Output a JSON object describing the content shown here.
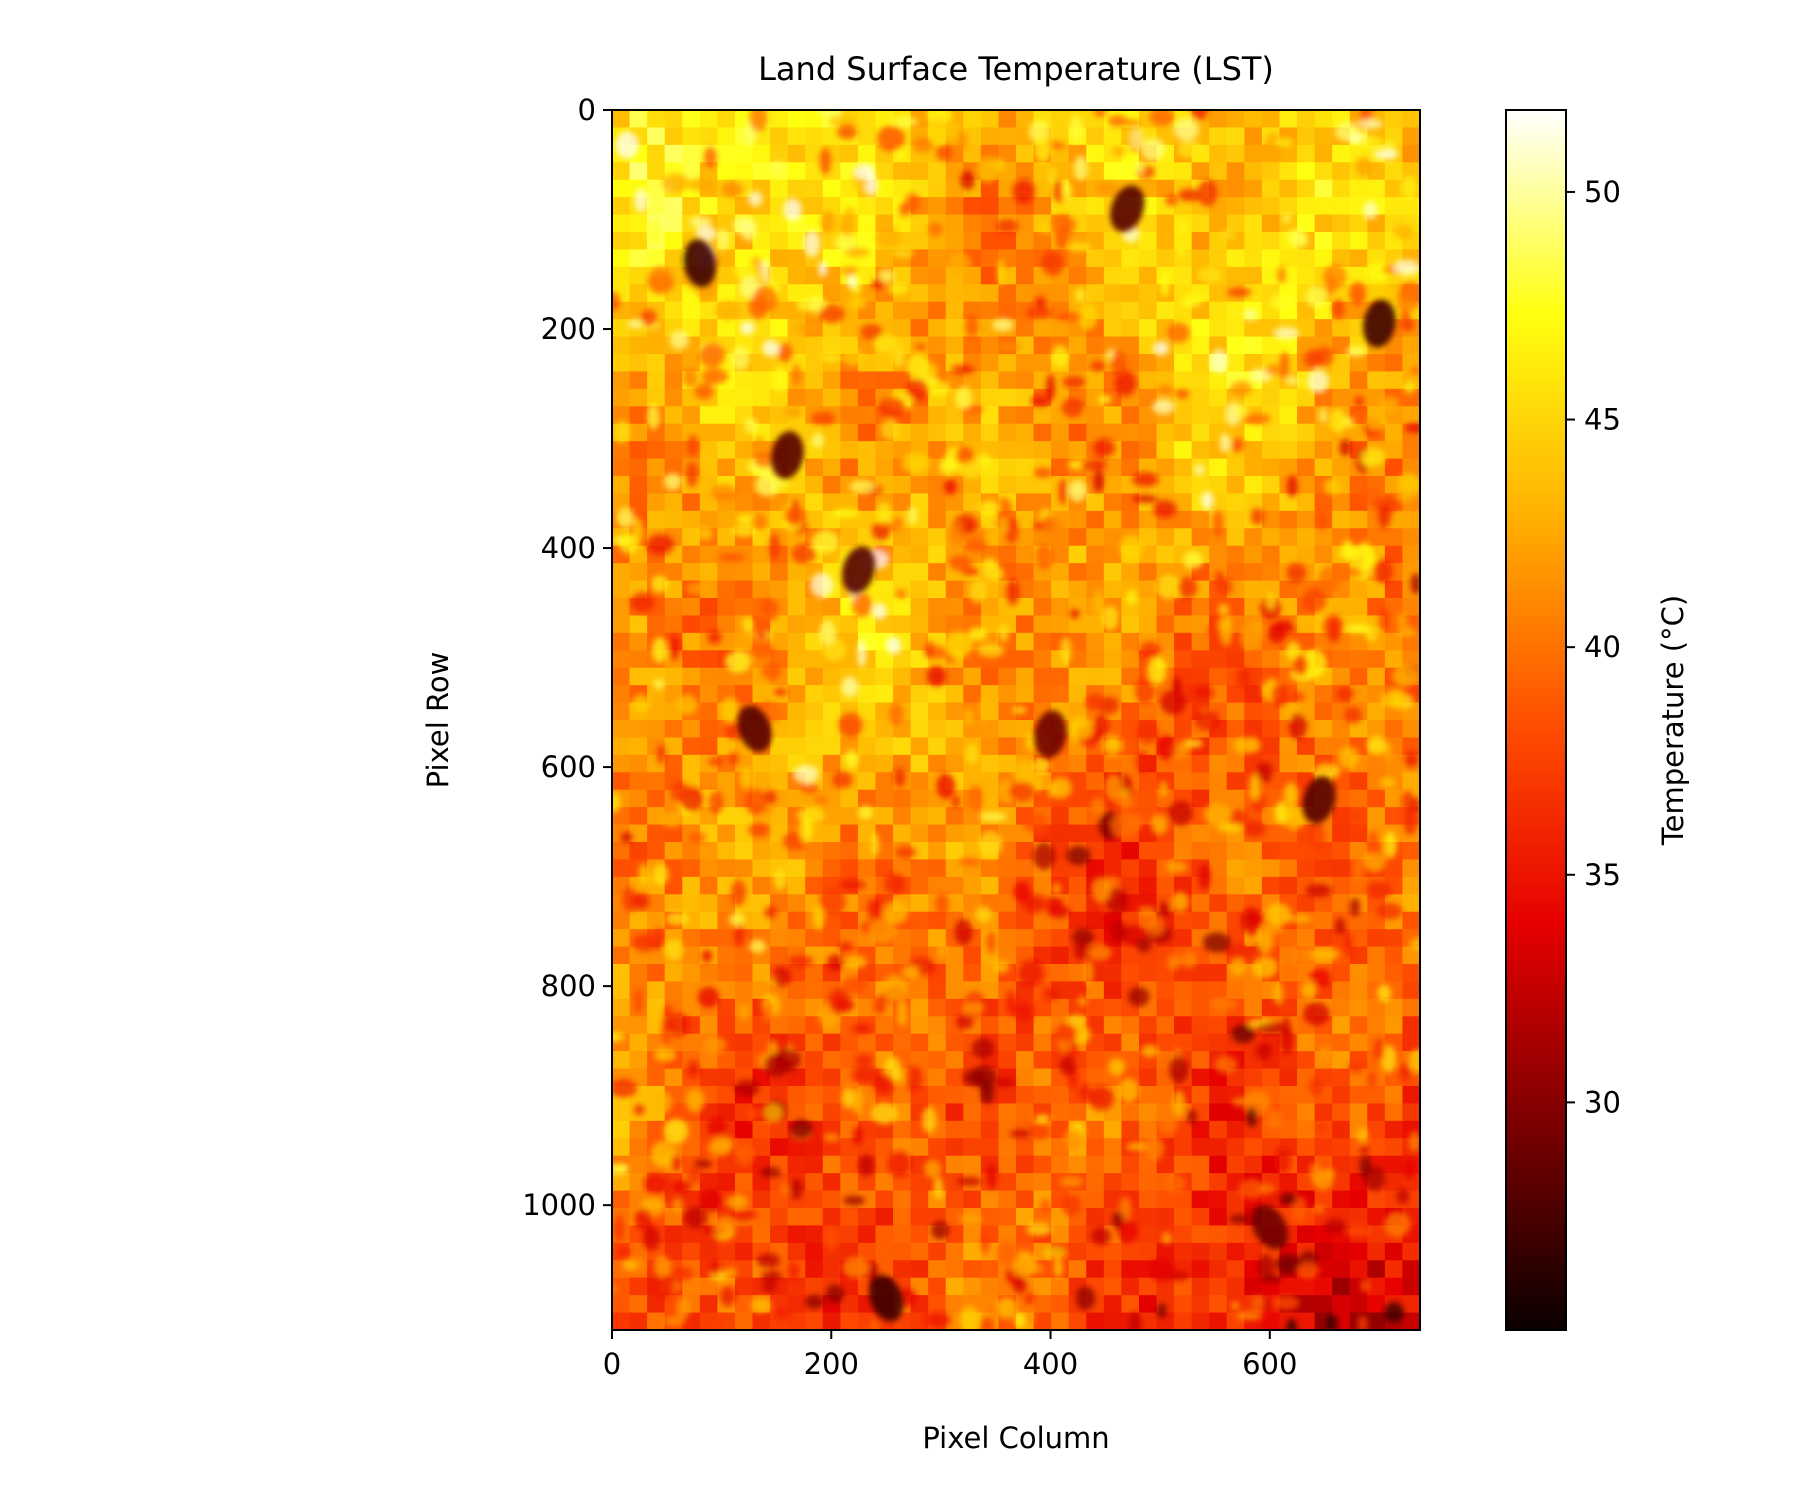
{
  "chart_data": {
    "type": "heatmap",
    "title": "Land Surface Temperature (LST)",
    "xlabel": "Pixel Column",
    "ylabel": "Pixel Row",
    "xlim": [
      0,
      737
    ],
    "ylim": [
      1114,
      0
    ],
    "xticks": [
      0,
      200,
      400,
      600
    ],
    "yticks": [
      0,
      200,
      400,
      600,
      800,
      1000
    ],
    "grid": false,
    "colormap": "hot",
    "colormap_stops": [
      "#0b0000",
      "#7a0000",
      "#e60000",
      "#ff5000",
      "#ffb000",
      "#ffff10",
      "#ffffff"
    ],
    "colorbar": {
      "label": "Temperature (°C)",
      "range": [
        25,
        51.8
      ],
      "ticks": [
        30,
        35,
        40,
        45,
        50
      ],
      "position": "right"
    },
    "summary": {
      "typical_range": [
        33,
        46
      ],
      "hotter_region": "upper-left and top edge (about 42-47 °C)",
      "cooler_region": "lower-right (about 30-36 °C)",
      "cool_spots": [
        {
          "col": 80,
          "row": 140,
          "value": 27
        },
        {
          "col": 160,
          "row": 315,
          "value": 28
        },
        {
          "col": 225,
          "row": 420,
          "value": 28
        },
        {
          "col": 470,
          "row": 90,
          "value": 28
        },
        {
          "col": 700,
          "row": 195,
          "value": 27
        },
        {
          "col": 645,
          "row": 630,
          "value": 28
        },
        {
          "col": 250,
          "row": 1085,
          "value": 27
        },
        {
          "col": 130,
          "row": 565,
          "value": 28
        },
        {
          "col": 400,
          "row": 570,
          "value": 29
        },
        {
          "col": 600,
          "row": 1020,
          "value": 29
        }
      ]
    }
  }
}
